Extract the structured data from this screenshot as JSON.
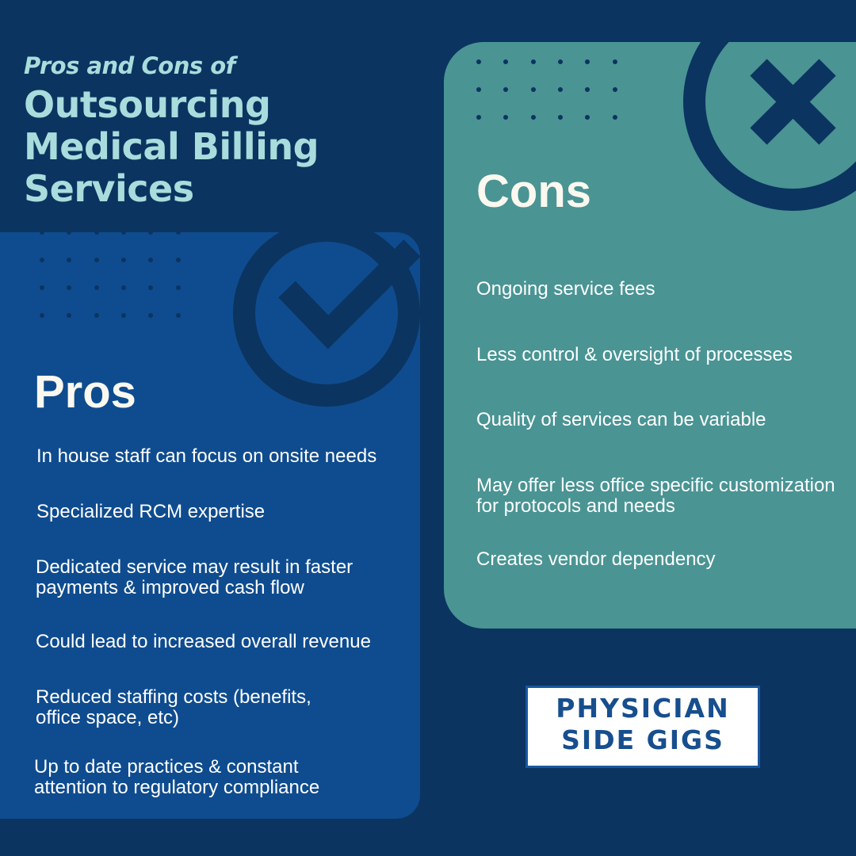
{
  "header": {
    "subtitle": "Pros and Cons of",
    "title_lines": [
      "Outsourcing",
      "Medical Billing",
      "Services"
    ]
  },
  "pros": {
    "heading": "Pros",
    "icon": "check-circle-icon",
    "items": [
      "In house staff can focus on onsite needs",
      "Specialized RCM expertise",
      "Dedicated service may result in faster payments & improved cash flow",
      "Could lead to increased overall revenue",
      "Reduced staffing costs (benefits, office space, etc)",
      "Up to date practices & constant attention to regulatory compliance"
    ]
  },
  "cons": {
    "heading": "Cons",
    "icon": "x-circle-icon",
    "items": [
      "Ongoing service fees",
      "Less control & oversight of processes",
      "Quality of services can be variable",
      "May offer less office specific customization for protocols and needs",
      "Creates vendor dependency"
    ]
  },
  "logo": {
    "line1": "PHYSICIAN",
    "line2": "SIDE GIGS"
  },
  "colors": {
    "background": "#0b3460",
    "pros_panel": "#0f4c8f",
    "cons_panel": "#4a9494",
    "title": "#a9dcdc"
  }
}
